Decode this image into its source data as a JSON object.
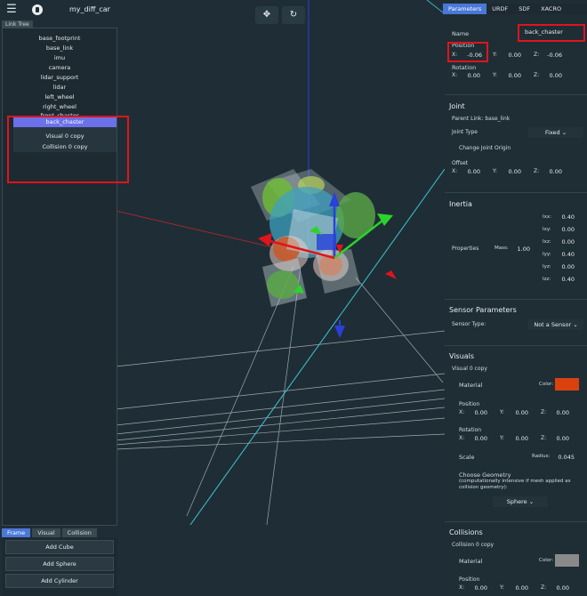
{
  "app": {
    "title": "my_diff_car"
  },
  "icons": {
    "menu": "hamburger-icon",
    "logo": "app-logo-icon",
    "move": "move-arrows-icon",
    "refresh": "refresh-icon"
  },
  "link_tree": {
    "tab_label": "Link Tree",
    "items": [
      "base_footprint",
      "base_link",
      "imu",
      "camera",
      "lidar_support",
      "lidar",
      "left_wheel",
      "right_wheel",
      "front_chaster"
    ],
    "selected": "back_chaster",
    "children": [
      "Visual 0 copy",
      "Collision 0 copy"
    ]
  },
  "bottom": {
    "tabs": [
      "Frame",
      "Visual",
      "Collision"
    ],
    "buttons": [
      "Add Cube",
      "Add Sphere",
      "Add Cylinder"
    ]
  },
  "right": {
    "tabs": [
      "Parameters",
      "URDF",
      "SDF",
      "XACRO"
    ],
    "name_label": "Name",
    "name_value": "back_chaster",
    "position_label": "Position",
    "position": {
      "x": "-0.06",
      "y": "0.00",
      "z": "-0.06"
    },
    "rotation_label": "Rotation",
    "rotation": {
      "x": "0.00",
      "y": "0.00",
      "z": "0.00"
    },
    "joint": {
      "title": "Joint",
      "parent_link": "Parent Link: base_link",
      "joint_type_label": "Joint Type",
      "joint_type_value": "Fixed",
      "change_origin": "Change Joint Origin",
      "offset_label": "Offset",
      "offset": {
        "x": "0.00",
        "y": "0.00",
        "z": "0.00"
      }
    },
    "inertia": {
      "title": "Inertia",
      "properties_label": "Properties",
      "mass_label": "Mass:",
      "mass_value": "1.00",
      "fields": [
        {
          "k": "Ixx:",
          "v": "0.40"
        },
        {
          "k": "Ixy:",
          "v": "0.00"
        },
        {
          "k": "Ixz:",
          "v": "0.00"
        },
        {
          "k": "Iyy:",
          "v": "0.40"
        },
        {
          "k": "Iyz:",
          "v": "0.00"
        },
        {
          "k": "Izz:",
          "v": "0.40"
        }
      ]
    },
    "sensor": {
      "title": "Sensor Parameters",
      "type_label": "Sensor Type:",
      "type_value": "Not a Sensor"
    },
    "visuals": {
      "title": "Visuals",
      "item": "Visual 0 copy",
      "material_label": "Material",
      "color_label": "Color:",
      "color": "#d9420f",
      "position_label": "Position",
      "position": {
        "x": "0.00",
        "y": "0.00",
        "z": "0.00"
      },
      "rotation_label": "Rotation",
      "rotation": {
        "x": "0.00",
        "y": "0.00",
        "z": "0.00"
      },
      "scale_label": "Scale",
      "radius_label": "Radius:",
      "radius_value": "0.045",
      "geometry_label": "Choose Geometry",
      "geometry_note": "(computationally intensive if mesh applied as collision geometry):",
      "geometry_value": "Sphere"
    },
    "collisions": {
      "title": "Collisions",
      "item": "Collision 0 copy",
      "material_label": "Material",
      "color_label": "Color:",
      "color": "#8a8a8a",
      "position_label": "Position",
      "position": {
        "x": "0.00",
        "y": "0.00",
        "z": "0.00"
      }
    },
    "axis_labels": {
      "x": "X:",
      "y": "Y:",
      "z": "Z:"
    }
  }
}
